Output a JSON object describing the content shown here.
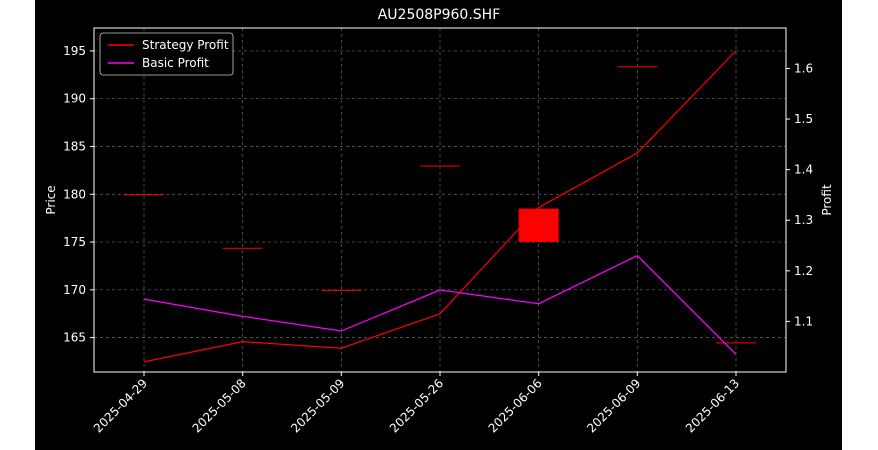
{
  "chart_data": {
    "type": "candlestick+line",
    "title": "AU2508P960.SHF",
    "xlabel": "",
    "ylabel_left": "Price",
    "ylabel_right": "Profit",
    "categories": [
      "2025-04-29",
      "2025-05-08",
      "2025-05-09",
      "2025-05-26",
      "2025-06-06",
      "2025-06-09",
      "2025-06-13"
    ],
    "ylim_left": [
      161.4,
      197.4
    ],
    "ylim_right": [
      1.0,
      1.68
    ],
    "yticks_left": [
      165,
      170,
      175,
      180,
      185,
      190,
      195
    ],
    "yticks_right": [
      1.1,
      1.2,
      1.3,
      1.4,
      1.5,
      1.6
    ],
    "grid": true,
    "legend": {
      "placement": "upper-left",
      "entries": [
        {
          "label": "Strategy Profit",
          "color": "#ff0000"
        },
        {
          "label": "Basic Profit",
          "color": "#ff00ff"
        }
      ]
    },
    "candles": [
      {
        "date": "2025-04-29",
        "open": 180.0,
        "close": 180.0,
        "color": "#ff0000"
      },
      {
        "date": "2025-05-08",
        "open": 174.4,
        "close": 174.4,
        "color": "#ff0000"
      },
      {
        "date": "2025-05-09",
        "open": 170.0,
        "close": 170.0,
        "color": "#ff0000"
      },
      {
        "date": "2025-05-26",
        "open": 183.0,
        "close": 183.0,
        "color": "#ff0000"
      },
      {
        "date": "2025-06-06",
        "open": 175.0,
        "close": 178.5,
        "color": "#ff0000"
      },
      {
        "date": "2025-06-09",
        "open": 193.4,
        "close": 193.4,
        "color": "#ff0000"
      },
      {
        "date": "2025-06-13",
        "open": 164.5,
        "close": 164.5,
        "color": "#ff0000"
      }
    ],
    "series": [
      {
        "name": "Strategy Profit",
        "color": "#ff0000",
        "values": [
          1.02,
          1.06,
          1.047,
          1.115,
          1.325,
          1.433,
          1.635
        ]
      },
      {
        "name": "Basic Profit",
        "color": "#ff00ff",
        "values": [
          1.144,
          1.11,
          1.081,
          1.162,
          1.135,
          1.23,
          1.035
        ]
      }
    ]
  }
}
